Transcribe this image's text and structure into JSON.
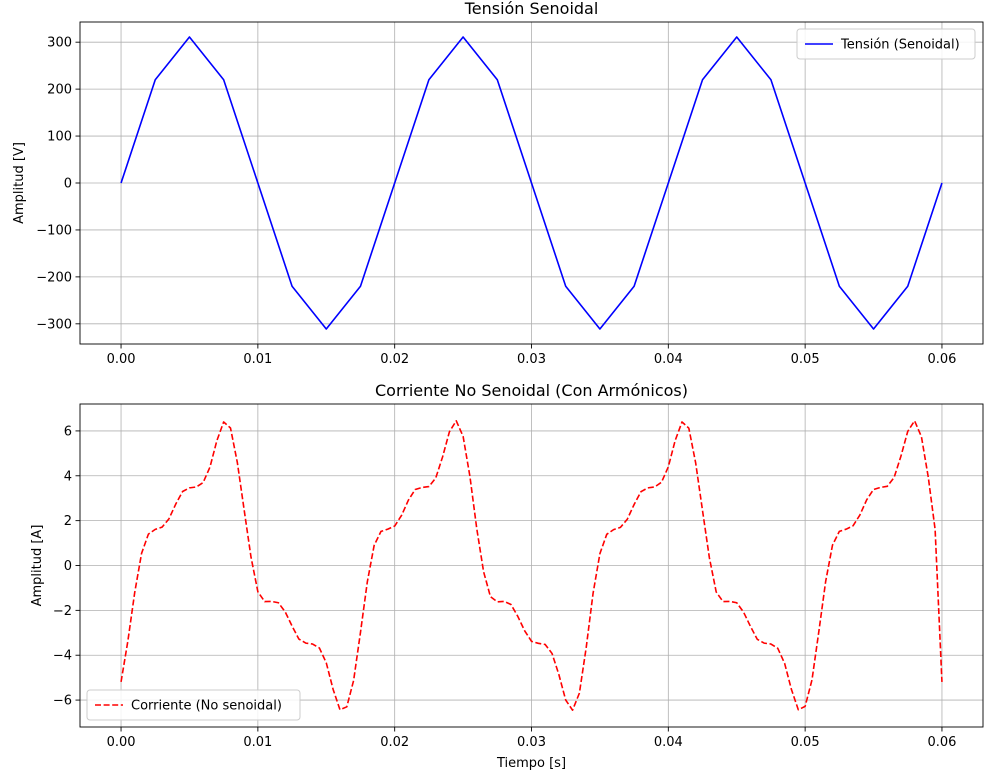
{
  "chart_data": [
    {
      "type": "line",
      "title": "Tensión Senoidal",
      "xlabel": "",
      "ylabel": "Amplitud [V]",
      "xlim": [
        -0.003,
        0.063
      ],
      "ylim": [
        -343,
        343
      ],
      "xticks": [
        0,
        0.01,
        0.02,
        0.03,
        0.04,
        0.05,
        0.06
      ],
      "xtick_labels": [
        "0.00",
        "0.01",
        "0.02",
        "0.03",
        "0.04",
        "0.05",
        "0.06"
      ],
      "yticks": [
        -300,
        -200,
        -100,
        0,
        100,
        200,
        300
      ],
      "ytick_labels": [
        "−300",
        "−200",
        "−100",
        "0",
        "100",
        "200",
        "300"
      ],
      "grid": true,
      "legend_position": "top-right",
      "series": [
        {
          "name": "Tensión (Senoidal)",
          "color": "#0000ff",
          "line_style": "solid",
          "x": [
            0,
            0.0025,
            0.005,
            0.0075,
            0.01,
            0.0125,
            0.015,
            0.0175,
            0.02,
            0.0225,
            0.025,
            0.0275,
            0.03,
            0.0325,
            0.035,
            0.0375,
            0.04,
            0.0425,
            0.045,
            0.0475,
            0.05,
            0.0525,
            0.055,
            0.0575,
            0.06
          ],
          "y": [
            0,
            219.9,
            311,
            219.9,
            0,
            -219.9,
            -311,
            -219.9,
            0,
            219.9,
            311,
            219.9,
            0,
            -219.9,
            -311,
            -219.9,
            0,
            219.9,
            311,
            219.9,
            0,
            -219.9,
            -311,
            -219.9,
            0
          ]
        }
      ]
    },
    {
      "type": "line",
      "title": "Corriente No Senoidal (Con Armónicos)",
      "xlabel": "Tiempo [s]",
      "ylabel": "Amplitud [A]",
      "xlim": [
        -0.003,
        0.063
      ],
      "ylim": [
        -7.2,
        7.2
      ],
      "xticks": [
        0,
        0.01,
        0.02,
        0.03,
        0.04,
        0.05,
        0.06
      ],
      "xtick_labels": [
        "0.00",
        "0.01",
        "0.02",
        "0.03",
        "0.04",
        "0.05",
        "0.06"
      ],
      "yticks": [
        -6,
        -4,
        -2,
        0,
        2,
        4,
        6
      ],
      "ytick_labels": [
        "−6",
        "−4",
        "−2",
        "0",
        "2",
        "4",
        "6"
      ],
      "grid": true,
      "legend_position": "bottom-left",
      "series": [
        {
          "name": "Corriente (No senoidal)",
          "color": "#ff0000",
          "line_style": "dashed",
          "x": [
            0,
            0.0005,
            0.001,
            0.0015,
            0.002,
            0.0025,
            0.003,
            0.0035,
            0.004,
            0.0045,
            0.005,
            0.0055,
            0.006,
            0.0065,
            0.007,
            0.0075,
            0.008,
            0.0085,
            0.009,
            0.0095,
            0.01,
            0.0105,
            0.011,
            0.0115,
            0.012,
            0.0125,
            0.013,
            0.0135,
            0.014,
            0.0145,
            0.015,
            0.0155,
            0.016,
            0.0165,
            0.017,
            0.0175,
            0.018,
            0.0185,
            0.019,
            0.0195,
            0.02,
            0.0205,
            0.021,
            0.0215,
            0.022,
            0.0225,
            0.023,
            0.0235,
            0.024,
            0.0245,
            0.025,
            0.0255,
            0.026,
            0.0265,
            0.027,
            0.0275,
            0.028,
            0.0285,
            0.029,
            0.0295,
            0.03,
            0.0305,
            0.031,
            0.0315,
            0.032,
            0.0325,
            0.033,
            0.0335,
            0.034,
            0.0345,
            0.035,
            0.0355,
            0.036,
            0.0365,
            0.037,
            0.0375,
            0.038,
            0.0385,
            0.039,
            0.0395,
            0.04,
            0.0405,
            0.041,
            0.0415,
            0.042,
            0.0425,
            0.043,
            0.0435,
            0.044,
            0.0445,
            0.045,
            0.0455,
            0.046,
            0.0465,
            0.047,
            0.0475,
            0.048,
            0.0485,
            0.049,
            0.0495,
            0.05,
            0.0505,
            0.051,
            0.0515,
            0.052,
            0.0525,
            0.053,
            0.0535,
            0.054,
            0.0545,
            0.055,
            0.0555,
            0.056,
            0.0565,
            0.057,
            0.0575,
            0.058,
            0.0585,
            0.059,
            0.0595,
            0.06
          ],
          "y": [
            -5.19,
            -3.36,
            -1.2,
            0.54,
            1.4,
            1.61,
            1.71,
            2.08,
            2.74,
            3.3,
            3.46,
            3.5,
            3.7,
            4.39,
            5.56,
            6.4,
            6.13,
            4.59,
            2.47,
            0.37,
            -1.17,
            -1.61,
            -1.6,
            -1.66,
            -2.07,
            -2.7,
            -3.28,
            -3.46,
            -3.5,
            -3.68,
            -4.34,
            -5.52,
            -6.43,
            -6.3,
            -5.12,
            -2.98,
            -0.73,
            0.9,
            1.52,
            1.62,
            1.76,
            2.23,
            2.91,
            3.39,
            3.48,
            3.52,
            3.9,
            4.84,
            5.96,
            6.45,
            5.76,
            3.97,
            1.64,
            -0.28,
            -1.39,
            -1.62,
            -1.6,
            -1.74,
            -2.27,
            -2.91,
            -3.38,
            -3.47,
            -3.52,
            -3.92,
            -4.86,
            -6.0,
            -6.45,
            -5.69,
            -3.65,
            -1.24,
            0.53,
            1.39,
            1.6,
            1.7,
            2.06,
            2.72,
            3.29,
            3.46,
            3.5,
            3.71,
            4.4,
            5.57,
            6.4,
            6.12,
            4.57,
            2.45,
            0.35,
            -1.18,
            -1.61,
            -1.6,
            -1.66,
            -2.08,
            -2.71,
            -3.29,
            -3.46,
            -3.5,
            -3.69,
            -4.36,
            -5.53,
            -6.43,
            -6.28,
            -5.1,
            -2.95,
            -0.71,
            0.91,
            1.52,
            1.62,
            1.77,
            2.25,
            2.93,
            3.39,
            3.48,
            3.53,
            3.92,
            4.87,
            5.98,
            6.45,
            5.74,
            3.94,
            1.61,
            -5.19
          ]
        }
      ]
    }
  ]
}
